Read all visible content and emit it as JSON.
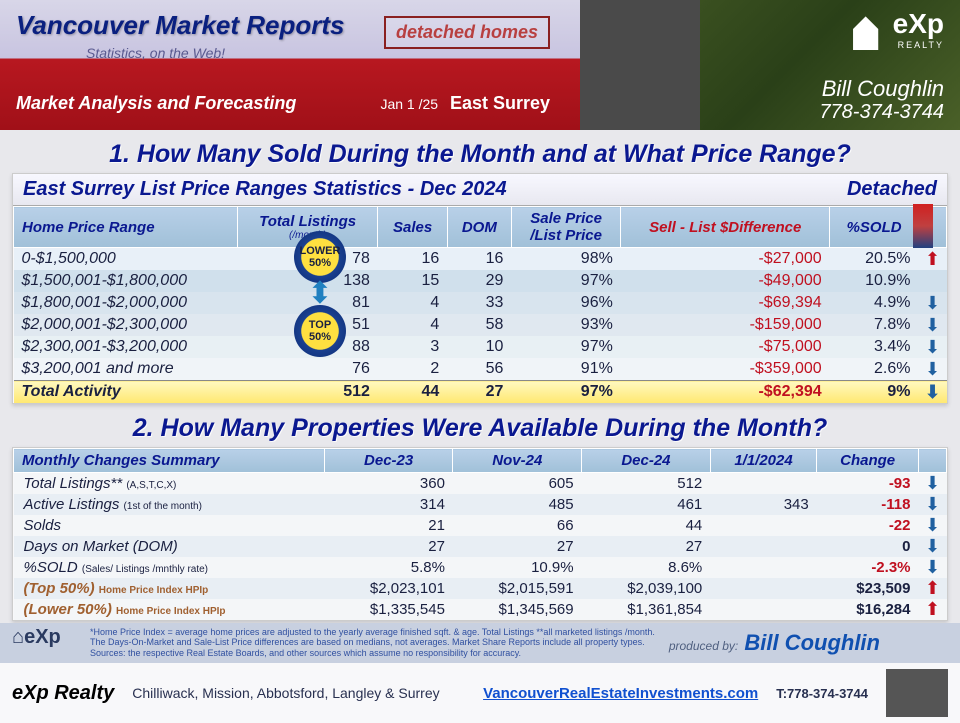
{
  "header": {
    "title": "Vancouver Market Reports",
    "subtitle": "Statistics, on the Web!",
    "badge": "detached homes",
    "tagline": "Market Analysis and Forecasting",
    "date": "Jan 1 /25",
    "area": "East Surrey",
    "brand_text": "eXp",
    "brand_sub": "REALTY",
    "contact_name": "Bill Coughlin",
    "contact_phone": "778-374-3744"
  },
  "q1": {
    "heading": "1. How Many Sold During the Month and at What Price Range?",
    "title": "East Surrey List Price Ranges Statistics - Dec  2024",
    "tag": "Detached",
    "columns": [
      "Home Price Range",
      "Total Listings",
      "Sales",
      "DOM",
      "Sale Price /List Price",
      "Sell - List $Difference",
      "%SOLD"
    ],
    "sublabel": "(/month)",
    "rows": [
      {
        "range": "0-$1,500,000",
        "listings": "78",
        "sales": "16",
        "dom": "16",
        "ratio": "98%",
        "diff": "-$27,000",
        "sold": "20.5%",
        "arrow": "up"
      },
      {
        "range": "$1,500,001-$1,800,000",
        "listings": "138",
        "sales": "15",
        "dom": "29",
        "ratio": "97%",
        "diff": "-$49,000",
        "sold": "10.9%",
        "arrow": ""
      },
      {
        "range": "$1,800,001-$2,000,000",
        "listings": "81",
        "sales": "4",
        "dom": "33",
        "ratio": "96%",
        "diff": "-$69,394",
        "sold": "4.9%",
        "arrow": "dn"
      },
      {
        "range": "$2,000,001-$2,300,000",
        "listings": "51",
        "sales": "4",
        "dom": "58",
        "ratio": "93%",
        "diff": "-$159,000",
        "sold": "7.8%",
        "arrow": "dn"
      },
      {
        "range": "$2,300,001-$3,200,000",
        "listings": "88",
        "sales": "3",
        "dom": "10",
        "ratio": "97%",
        "diff": "-$75,000",
        "sold": "3.4%",
        "arrow": "dn"
      },
      {
        "range": "$3,200,001 and more",
        "listings": "76",
        "sales": "2",
        "dom": "56",
        "ratio": "91%",
        "diff": "-$359,000",
        "sold": "2.6%",
        "arrow": "dn"
      }
    ],
    "total": {
      "label": "Total Activity",
      "listings": "512",
      "sales": "44",
      "dom": "27",
      "ratio": "97%",
      "diff": "-$62,394",
      "sold": "9%",
      "arrow": "dn"
    },
    "overlay": {
      "lower": "LOWER",
      "top": "TOP",
      "pct": "50%"
    }
  },
  "q2": {
    "heading": "2. How Many Properties Were Available During the Month?",
    "title": "Monthly Changes Summary",
    "columns": [
      "Dec-23",
      "Nov-24",
      "Dec-24",
      "1/1/2024",
      "Change"
    ],
    "rows": [
      {
        "key": "Total Listings**",
        "note": "(A,S,T,C,X)",
        "v": [
          "360",
          "605",
          "512",
          ""
        ],
        "chg": "-93",
        "dir": "dn",
        "cls": "neg"
      },
      {
        "key": "Active Listings",
        "note": "(1st of the month)",
        "v": [
          "314",
          "485",
          "461",
          "343"
        ],
        "chg": "-118",
        "dir": "dn",
        "cls": "neg"
      },
      {
        "key": "Solds",
        "note": "",
        "v": [
          "21",
          "66",
          "44",
          ""
        ],
        "chg": "-22",
        "dir": "dn",
        "cls": "neg"
      },
      {
        "key": "Days on Market (DOM)",
        "note": "",
        "v": [
          "27",
          "27",
          "27",
          ""
        ],
        "chg": "0",
        "dir": "dn",
        "cls": "pos"
      },
      {
        "key": "%SOLD",
        "note": "(Sales/ Listings /mnthly rate)",
        "v": [
          "5.8%",
          "10.9%",
          "8.6%",
          ""
        ],
        "chg": "-2.3%",
        "dir": "dn",
        "cls": "neg"
      },
      {
        "key": "(Top 50%)",
        "note": "Home Price Index HPIp",
        "v": [
          "$2,023,101",
          "$2,015,591",
          "$2,039,100",
          ""
        ],
        "chg": "$23,509",
        "dir": "up",
        "cls": "pos",
        "hp": true
      },
      {
        "key": "(Lower 50%)",
        "note": "Home Price Index HPIp",
        "v": [
          "$1,335,545",
          "$1,345,569",
          "$1,361,854",
          ""
        ],
        "chg": "$16,284",
        "dir": "up",
        "cls": "pos",
        "hp": true
      }
    ]
  },
  "footer": {
    "disclaimer": "*Home Price Index = average home prices are adjusted to the yearly average finished sqft. & age.  Total Listings **all marketed listings /month.\nThe Days-On-Market and Sale-List Price differences are based on medians, not averages. Market Share Reports include all property types.\nSources:  the respective Real Estate Boards, and other sources which assume no responsibility for accuracy.",
    "producer_lbl": "produced by:",
    "producer": "Bill Coughlin",
    "brand": "eXp Realty",
    "areas": "Chilliwack, Mission, Abbotsford, Langley & Surrey",
    "url": "VancouverRealEstateInvestments.com",
    "phone": "T:778-374-3744"
  },
  "colors": {
    "heading": "#0a1890",
    "neg": "#c01020",
    "row_band1": "#e8f0f8",
    "row_band2": "#d0e0ec"
  }
}
